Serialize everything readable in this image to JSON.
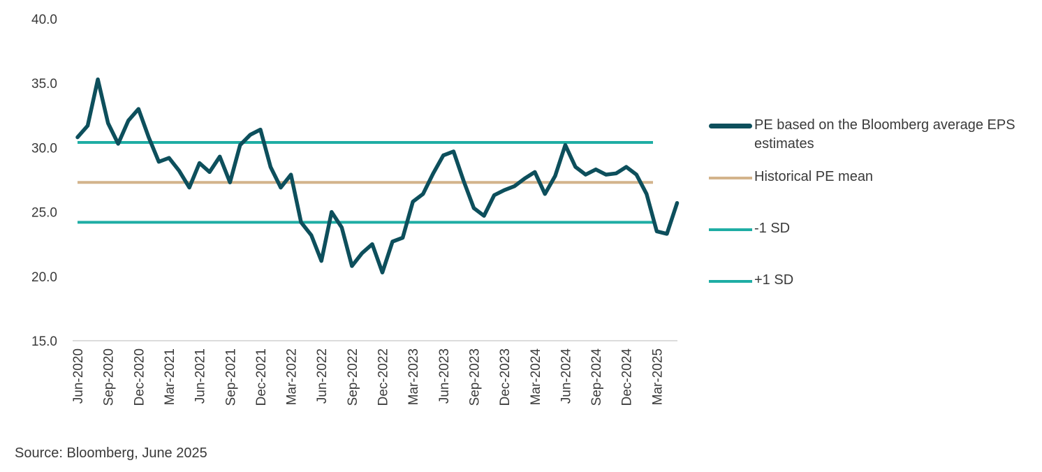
{
  "chart_data": {
    "type": "line",
    "ylim": [
      15,
      40
    ],
    "yticks": [
      "15.0",
      "20.0",
      "25.0",
      "30.0",
      "35.0",
      "40.0"
    ],
    "x": [
      "Jun-2020",
      "Jul-2020",
      "Aug-2020",
      "Sep-2020",
      "Oct-2020",
      "Nov-2020",
      "Dec-2020",
      "Jan-2021",
      "Feb-2021",
      "Mar-2021",
      "Apr-2021",
      "May-2021",
      "Jun-2021",
      "Jul-2021",
      "Aug-2021",
      "Sep-2021",
      "Oct-2021",
      "Nov-2021",
      "Dec-2021",
      "Jan-2022",
      "Feb-2022",
      "Mar-2022",
      "Apr-2022",
      "May-2022",
      "Jun-2022",
      "Jul-2022",
      "Aug-2022",
      "Sep-2022",
      "Oct-2022",
      "Nov-2022",
      "Dec-2022",
      "Jan-2023",
      "Feb-2023",
      "Mar-2023",
      "Apr-2023",
      "May-2023",
      "Jun-2023",
      "Jul-2023",
      "Aug-2023",
      "Sep-2023",
      "Oct-2023",
      "Nov-2023",
      "Dec-2023",
      "Jan-2024",
      "Feb-2024",
      "Mar-2024",
      "Apr-2024",
      "May-2024",
      "Jun-2024",
      "Jul-2024",
      "Aug-2024",
      "Sep-2024",
      "Oct-2024",
      "Nov-2024",
      "Dec-2024",
      "Jan-2025",
      "Feb-2025",
      "Mar-2025",
      "Apr-2025",
      "May-2025"
    ],
    "xtick_labels": [
      "Jun-2020",
      "Sep-2020",
      "Dec-2020",
      "Mar-2021",
      "Jun-2021",
      "Sep-2021",
      "Dec-2021",
      "Mar-2022",
      "Jun-2022",
      "Sep-2022",
      "Dec-2022",
      "Mar-2023",
      "Jun-2023",
      "Sep-2023",
      "Dec-2023",
      "Mar-2024",
      "Jun-2024",
      "Sep-2024",
      "Dec-2024",
      "Mar-2025"
    ],
    "series": [
      {
        "name": "PE based on the Bloomberg average EPS estimates",
        "color": "#0d4f5c",
        "values": [
          30.8,
          31.7,
          35.3,
          31.9,
          30.3,
          32.1,
          33.0,
          30.8,
          28.9,
          29.2,
          28.2,
          26.9,
          28.8,
          28.1,
          29.3,
          27.3,
          30.2,
          31.0,
          31.4,
          28.5,
          26.9,
          27.9,
          24.2,
          23.2,
          21.2,
          25.0,
          23.8,
          20.8,
          21.8,
          22.5,
          20.3,
          22.7,
          23.0,
          25.8,
          26.4,
          28.0,
          29.4,
          29.7,
          27.4,
          25.3,
          24.7,
          26.3,
          26.7,
          27.0,
          27.6,
          28.1,
          26.4,
          27.8,
          30.2,
          28.5,
          27.9,
          28.3,
          27.9,
          28.0,
          28.5,
          27.9,
          26.4,
          23.5,
          23.3,
          25.7
        ]
      },
      {
        "name": "Historical PE mean",
        "color": "#d3b48c",
        "constant": 27.3
      },
      {
        "name": "-1 SD",
        "color": "#1fada4",
        "constant": 24.2
      },
      {
        "name": "+1 SD",
        "color": "#1fada4",
        "constant": 30.4
      }
    ],
    "legend_position": "right",
    "grid": false
  },
  "source": "Source: Bloomberg, June 2025"
}
